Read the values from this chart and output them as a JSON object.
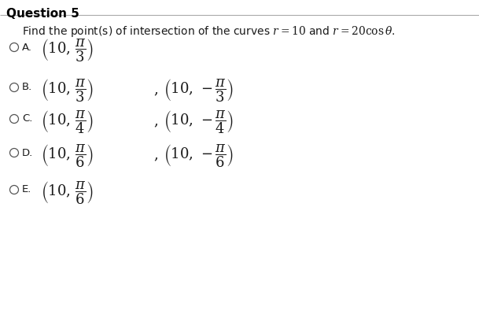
{
  "title": "Question 5",
  "bg_color": "#ffffff",
  "title_color": "#000000",
  "text_color": "#1a1a1a",
  "circle_color": "#555555",
  "separator_color": "#aaaaaa",
  "question_line": "Find the point(s) of intersection of the curves $r = 10$ and $r = 20\\cos\\theta$.",
  "options": [
    {
      "label": "A.",
      "single": true,
      "t1": "$\\left(10,\\,\\dfrac{\\pi}{3}\\right)$"
    },
    {
      "label": "B.",
      "single": false,
      "t1": "$\\left(10,\\,\\dfrac{\\pi}{3}\\right)$",
      "t2": "$\\left(10,\\,-\\dfrac{\\pi}{3}\\right)$"
    },
    {
      "label": "C.",
      "single": false,
      "t1": "$\\left(10,\\,\\dfrac{\\pi}{4}\\right)$",
      "t2": "$\\left(10,\\,-\\dfrac{\\pi}{4}\\right)$"
    },
    {
      "label": "D.",
      "single": false,
      "t1": "$\\left(10,\\,\\dfrac{\\pi}{6}\\right)$",
      "t2": "$\\left(10,\\,-\\dfrac{\\pi}{6}\\right)$"
    },
    {
      "label": "E.",
      "single": true,
      "t1": "$\\left(10,\\,\\dfrac{\\pi}{6}\\right)$"
    }
  ],
  "figw": 6.09,
  "figh": 4.09,
  "dpi": 100
}
